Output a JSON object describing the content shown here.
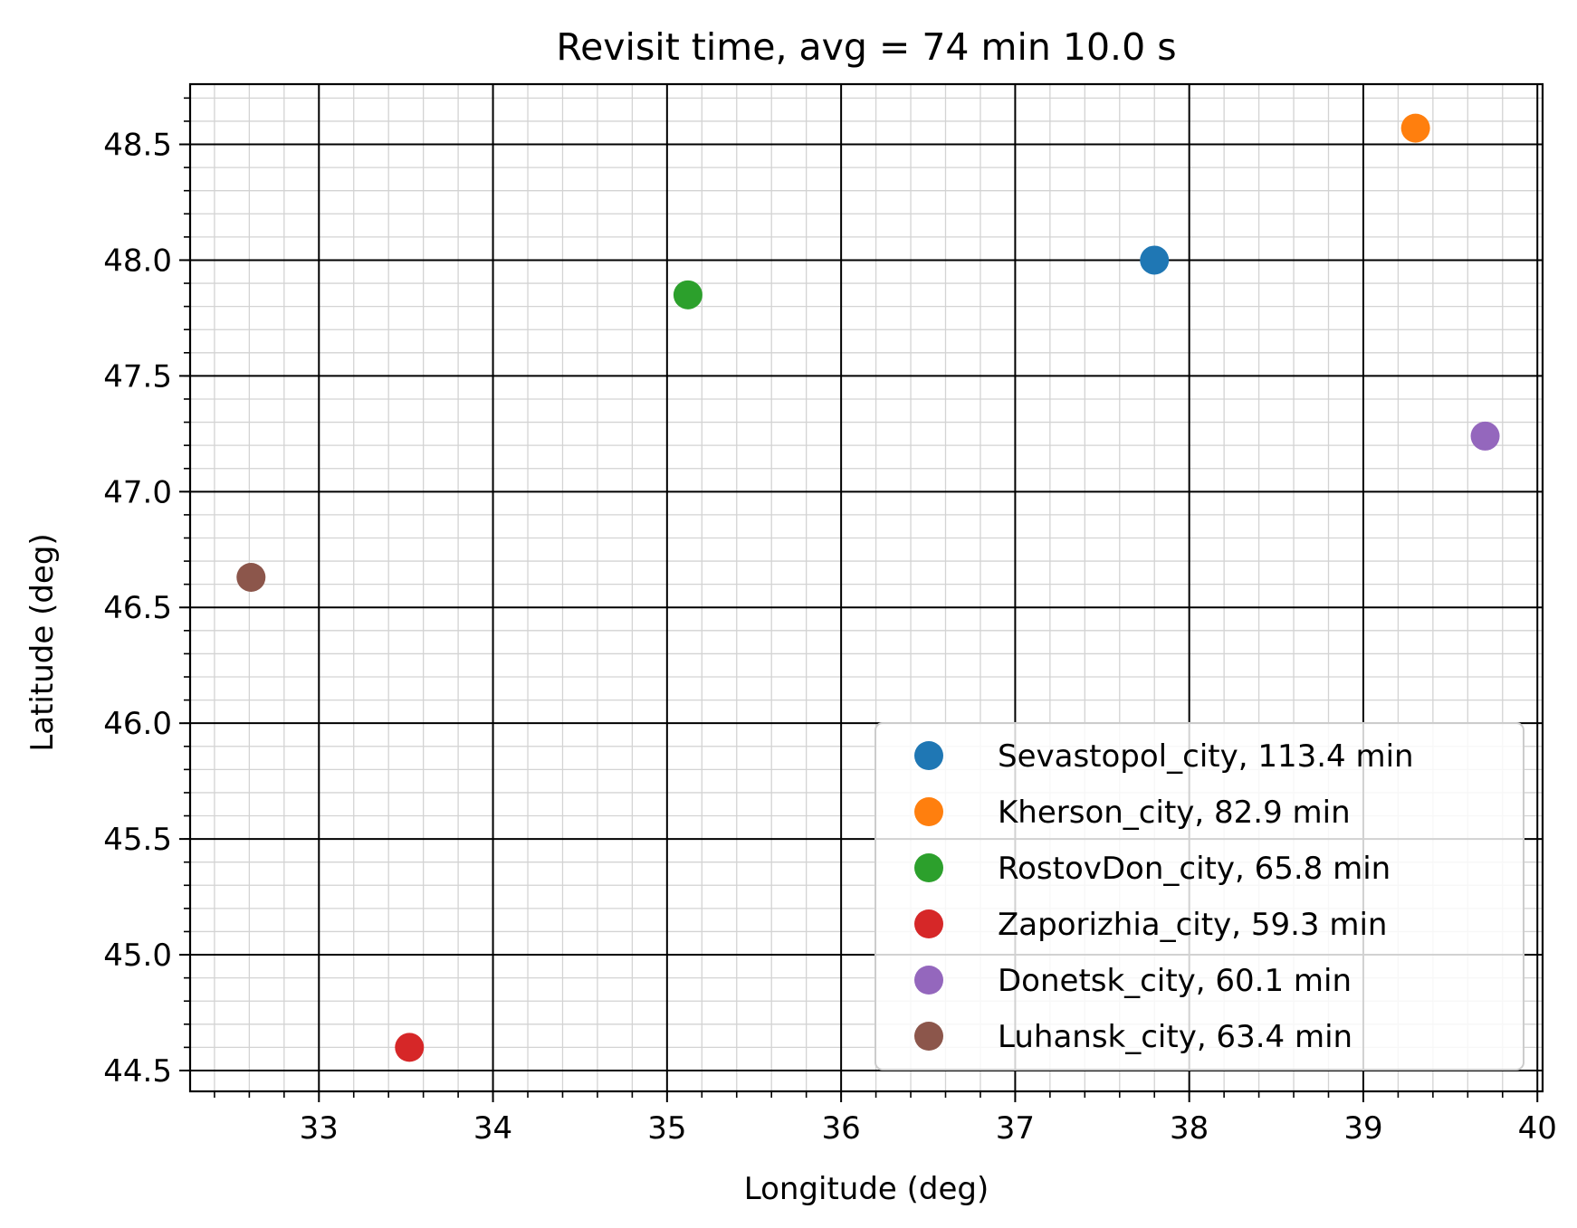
{
  "chart_data": {
    "type": "scatter",
    "title": "Revisit time, avg = 74 min 10.0 s",
    "xlabel": "Longitude (deg)",
    "ylabel": "Latitude (deg)",
    "xlim": [
      32.26,
      40.03
    ],
    "ylim": [
      44.41,
      48.76
    ],
    "xticks": [
      33,
      34,
      35,
      36,
      37,
      38,
      39,
      40
    ],
    "xtick_labels": [
      "33",
      "34",
      "35",
      "36",
      "37",
      "38",
      "39",
      "40"
    ],
    "yticks": [
      44.5,
      45.0,
      45.5,
      46.0,
      46.5,
      47.0,
      47.5,
      48.0,
      48.5
    ],
    "ytick_labels": [
      "44.5",
      "45.0",
      "45.5",
      "46.0",
      "46.5",
      "47.0",
      "47.5",
      "48.0",
      "48.5"
    ],
    "minor_step_x": 0.2,
    "minor_step_y": 0.1,
    "grid": "major and minor",
    "legend_position": "lower right",
    "series": [
      {
        "name": "Sevastopol_city, 113.4 min",
        "color": "#1f77b4",
        "x": [
          37.8
        ],
        "y": [
          48.0
        ]
      },
      {
        "name": "Kherson_city, 82.9 min",
        "color": "#ff7f0e",
        "x": [
          39.3
        ],
        "y": [
          48.57
        ]
      },
      {
        "name": "RostovDon_city, 65.8 min",
        "color": "#2ca02c",
        "x": [
          35.12
        ],
        "y": [
          47.85
        ]
      },
      {
        "name": "Zaporizhia_city, 59.3 min",
        "color": "#d62728",
        "x": [
          33.52
        ],
        "y": [
          44.6
        ]
      },
      {
        "name": "Donetsk_city, 60.1 min",
        "color": "#9467bd",
        "x": [
          39.7
        ],
        "y": [
          47.24
        ]
      },
      {
        "name": "Luhansk_city, 63.4 min",
        "color": "#8c564b",
        "x": [
          32.61
        ],
        "y": [
          46.63
        ]
      }
    ]
  }
}
